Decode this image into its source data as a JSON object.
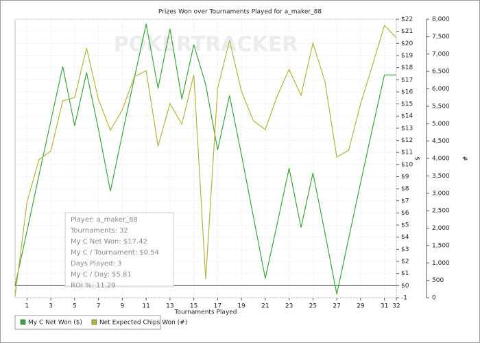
{
  "chart_data": {
    "type": "line",
    "title": "Prizes Won over Tournaments Played for a_maker_88",
    "watermark": "POKERTRACKER",
    "x_label": "Tournaments Played",
    "y_label": "$",
    "y2_label": "#",
    "x": [
      0,
      1,
      2,
      3,
      4,
      5,
      6,
      7,
      8,
      9,
      10,
      11,
      12,
      13,
      14,
      15,
      16,
      17,
      18,
      19,
      20,
      21,
      22,
      23,
      24,
      25,
      26,
      27,
      28,
      29,
      30,
      31,
      32
    ],
    "xlim": [
      0,
      32
    ],
    "xticks": [
      1,
      3,
      5,
      7,
      9,
      11,
      13,
      15,
      17,
      19,
      21,
      23,
      25,
      27,
      29,
      31,
      32
    ],
    "ylim": [
      -1,
      22
    ],
    "yticks": [
      -1,
      {
        "value": 0,
        "label": "$0"
      },
      {
        "value": 1,
        "label": "$1"
      },
      {
        "value": 2,
        "label": "$2"
      },
      {
        "value": 3,
        "label": "$3"
      },
      {
        "value": 4,
        "label": "$4"
      },
      {
        "value": 5,
        "label": "$5"
      },
      {
        "value": 6,
        "label": "$6"
      },
      {
        "value": 7,
        "label": "$7"
      },
      {
        "value": 8,
        "label": "$8"
      },
      {
        "value": 9,
        "label": "$9"
      },
      {
        "value": 10,
        "label": "$10"
      },
      {
        "value": 11,
        "label": "$11"
      },
      {
        "value": 12,
        "label": "$12"
      },
      {
        "value": 13,
        "label": "$13"
      },
      {
        "value": 14,
        "label": "$14"
      },
      {
        "value": 15,
        "label": "$15"
      },
      {
        "value": 16,
        "label": "$16"
      },
      {
        "value": 17,
        "label": "$17"
      },
      {
        "value": 18,
        "label": "$18"
      },
      {
        "value": 19,
        "label": "$19"
      },
      {
        "value": 20,
        "label": "$20"
      },
      {
        "value": 21,
        "label": "$21"
      },
      {
        "value": 22,
        "label": "$22"
      }
    ],
    "y2lim": [
      0,
      8000
    ],
    "y2ticks": [
      0,
      500,
      {
        "value": 1000,
        "label": "1,000"
      },
      {
        "value": 1500,
        "label": "1,500"
      },
      {
        "value": 2000,
        "label": "2,000"
      },
      {
        "value": 2500,
        "label": "2,500"
      },
      {
        "value": 3000,
        "label": "3,000"
      },
      {
        "value": 3500,
        "label": "3,500"
      },
      {
        "value": 4000,
        "label": "4,000"
      },
      {
        "value": 4500,
        "label": "4,500"
      },
      {
        "value": 5000,
        "label": "5,000"
      },
      {
        "value": 5500,
        "label": "5,500"
      },
      {
        "value": 6000,
        "label": "6,000"
      },
      {
        "value": 6500,
        "label": "6,500"
      },
      {
        "value": 7000,
        "label": "7,000"
      },
      {
        "value": 7500,
        "label": "7,500"
      },
      {
        "value": 8000,
        "label": "8,000"
      }
    ],
    "grid": true,
    "series": [
      {
        "name": "My C Net Won ($)",
        "color": "#3aa63a",
        "values": [
          0,
          4.5,
          9.1,
          13.6,
          18.1,
          13.2,
          17.6,
          12.9,
          7.8,
          12.5,
          17.1,
          21.6,
          16.3,
          21.2,
          15.4,
          19.9,
          16.6,
          11.2,
          15.7,
          10.8,
          5.7,
          0.6,
          5.1,
          9.7,
          4.8,
          9.3,
          4.4,
          -0.7,
          3.9,
          8.5,
          13.0,
          17.4,
          17.4
        ]
      },
      {
        "name": "Net Expected Chips Won (#)",
        "color": "#b4b43c",
        "axis": "y2",
        "values": [
          40,
          2750,
          3960,
          4215,
          5655,
          5750,
          7170,
          5690,
          4810,
          5400,
          6345,
          6520,
          4355,
          5575,
          4985,
          6405,
          530,
          6010,
          7390,
          5930,
          5085,
          4830,
          5795,
          6560,
          5810,
          7310,
          6225,
          4040,
          4235,
          5575,
          6680,
          7820,
          7470
        ]
      }
    ],
    "annotations": [
      "Player: a_maker_88",
      "Tournaments: 32",
      "My C Net Won: $17.42",
      "My C / Tournament: $0.54",
      "Days Played: 3",
      "My C / Day: $5.81",
      "ROI %: 11.29"
    ]
  }
}
